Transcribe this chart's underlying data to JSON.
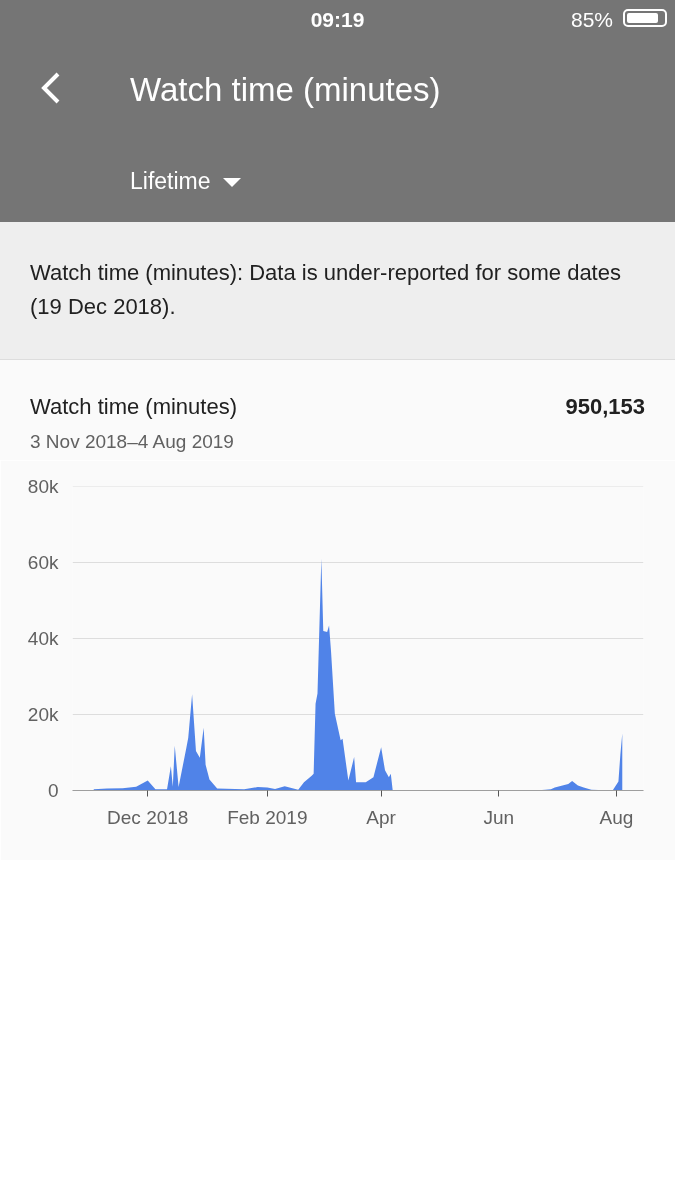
{
  "chart_data": {
    "type": "area",
    "title": "Watch time (minutes)",
    "subtitle": "Lifetime",
    "annotations": [
      "09:19",
      "85%",
      "Watch time (minutes): Data is under-reported for some dates (19 Dec 2018).",
      "Watch time (minutes)",
      "950,153",
      "3 Nov 2018–4 Aug 2019"
    ],
    "x": [
      "2018-11-03",
      "2018-11-10",
      "2018-11-18",
      "2018-11-25",
      "2018-12-01",
      "2018-12-05",
      "2018-12-11",
      "2018-12-13",
      "2018-12-14",
      "2018-12-15",
      "2018-12-17",
      "2018-12-21",
      "2018-12-22",
      "2018-12-24",
      "2018-12-26",
      "2018-12-28",
      "2018-12-30",
      "2018-12-31",
      "2019-01-02",
      "2019-01-06",
      "2019-01-20",
      "2019-01-27",
      "2019-02-01",
      "2019-02-05",
      "2019-02-10",
      "2019-02-17",
      "2019-02-20",
      "2019-02-24",
      "2019-02-25",
      "2019-02-26",
      "2019-02-27",
      "2019-03-01",
      "2019-03-02",
      "2019-03-04",
      "2019-03-05",
      "2019-03-06",
      "2019-03-08",
      "2019-03-11",
      "2019-03-12",
      "2019-03-15",
      "2019-03-18",
      "2019-03-19",
      "2019-03-24",
      "2019-03-28",
      "2019-04-01",
      "2019-04-03",
      "2019-04-05",
      "2019-04-06",
      "2019-04-07",
      "2019-06-20",
      "2019-06-25",
      "2019-06-28",
      "2019-06-30",
      "2019-07-04",
      "2019-07-07",
      "2019-07-09",
      "2019-07-12",
      "2019-07-15",
      "2019-07-19",
      "2019-07-30",
      "2019-08-02",
      "2019-08-03",
      "2019-08-04"
    ],
    "values": [
      300,
      500,
      600,
      1000,
      2600,
      300,
      300,
      6400,
      1000,
      11800,
      900,
      11200,
      13900,
      25300,
      10400,
      8600,
      16500,
      6800,
      2900,
      500,
      300,
      900,
      800,
      400,
      1100,
      200,
      2200,
      3900,
      4400,
      22800,
      25500,
      61000,
      42000,
      41700,
      43400,
      36800,
      20200,
      13200,
      13600,
      2600,
      8800,
      2200,
      2200,
      3500,
      11400,
      5300,
      3500,
      4400,
      0,
      0,
      200,
      300,
      800,
      1300,
      1700,
      2500,
      1300,
      800,
      200,
      0,
      2400,
      9400,
      15000
    ],
    "color": "#5083e8",
    "xlim": [
      "2018-10-23",
      "2019-08-15"
    ],
    "xticks": [
      {
        "value": "2018-12-01",
        "label": "Dec 2018"
      },
      {
        "value": "2019-02-01",
        "label": "Feb 2019"
      },
      {
        "value": "2019-04-01",
        "label": "Apr"
      },
      {
        "value": "2019-06-01",
        "label": "Jun"
      },
      {
        "value": "2019-08-01",
        "label": "Aug"
      }
    ],
    "ylim": [
      0,
      80000
    ],
    "yticks": [
      0,
      {
        "value": 20000,
        "label": "20k"
      },
      {
        "value": 40000,
        "label": "40k"
      },
      {
        "value": 60000,
        "label": "60k"
      },
      {
        "value": 80000,
        "label": "80k"
      }
    ],
    "grid": "y"
  }
}
